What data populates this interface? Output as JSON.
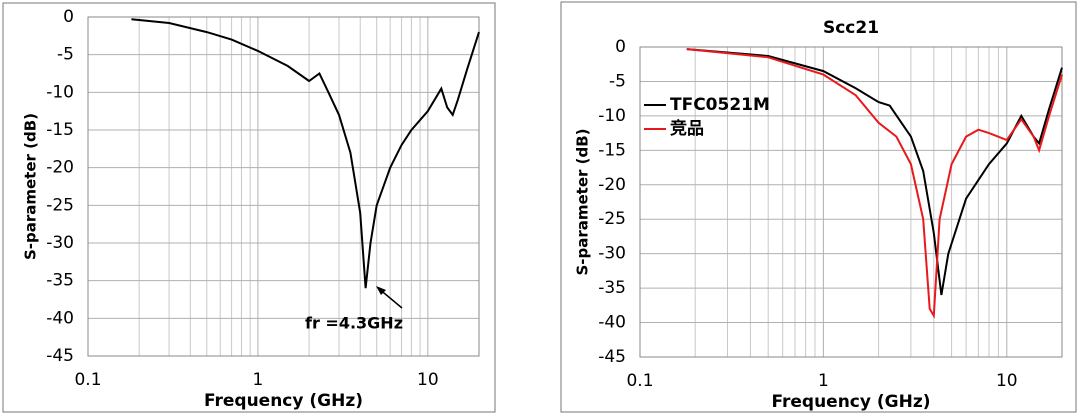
{
  "chart_data": [
    {
      "type": "line",
      "xlabel": "Frequency (GHz)",
      "ylabel": "S-parameter (dB)",
      "log_x": true,
      "grid": true,
      "xlim": [
        0.1,
        20
      ],
      "xticks": [
        0.1,
        1,
        10
      ],
      "ylim": [
        -45,
        0
      ],
      "yticks": [
        0,
        -5,
        -10,
        -15,
        -20,
        -25,
        -30,
        -35,
        -40,
        -45
      ],
      "annotation": "fr =4.3GHz",
      "series": [
        {
          "color": "#000000",
          "x": [
            0.18,
            0.3,
            0.5,
            0.7,
            1,
            1.5,
            2,
            2.3,
            2.6,
            3,
            3.5,
            4,
            4.3,
            4.6,
            5,
            6,
            7,
            8,
            10,
            12,
            13,
            14,
            15,
            17,
            20
          ],
          "values": [
            -0.3,
            -0.8,
            -2,
            -3,
            -4.5,
            -6.5,
            -8.5,
            -7.5,
            -10,
            -13,
            -18,
            -26,
            -36,
            -30,
            -25,
            -20,
            -17,
            -15,
            -12.5,
            -9.5,
            -12,
            -13,
            -11,
            -7,
            -2
          ]
        }
      ]
    },
    {
      "type": "line",
      "title": "Scc21",
      "xlabel": "Frequency (GHz)",
      "ylabel": "S-parameter (dB)",
      "log_x": true,
      "grid": true,
      "xlim": [
        0.1,
        20
      ],
      "xticks": [
        0.1,
        1,
        10
      ],
      "ylim": [
        -45,
        0
      ],
      "yticks": [
        0,
        -5,
        -10,
        -15,
        -20,
        -25,
        -30,
        -35,
        -40,
        -45
      ],
      "legend": "upper left",
      "series": [
        {
          "name": "TFC0521M",
          "color": "#000000",
          "x": [
            0.18,
            0.5,
            1,
            1.5,
            2,
            2.3,
            3,
            3.5,
            4,
            4.4,
            4.8,
            6,
            8,
            10,
            12,
            14,
            15,
            17,
            20
          ],
          "values": [
            -0.3,
            -1.3,
            -3.5,
            -6,
            -8,
            -8.5,
            -13,
            -18,
            -27,
            -36,
            -30,
            -22,
            -17,
            -14,
            -10,
            -13,
            -14,
            -9,
            -3
          ]
        },
        {
          "name": "竞品",
          "color": "#e8191c",
          "x": [
            0.18,
            0.5,
            1,
            1.5,
            2,
            2.5,
            3,
            3.5,
            3.8,
            4,
            4.3,
            5,
            6,
            7,
            8,
            10,
            12,
            14,
            15,
            17,
            20
          ],
          "values": [
            -0.3,
            -1.5,
            -4,
            -7,
            -11,
            -13,
            -17,
            -25,
            -38,
            -39,
            -25,
            -17,
            -13,
            -12,
            -12.5,
            -13.5,
            -10.5,
            -13,
            -15,
            -10,
            -4
          ]
        }
      ]
    }
  ]
}
